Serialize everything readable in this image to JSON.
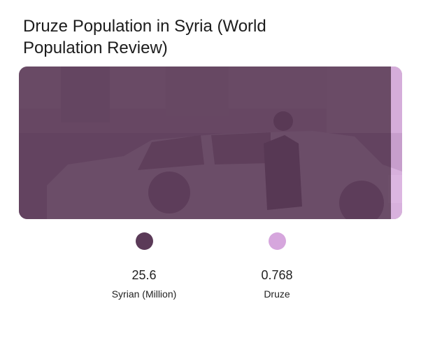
{
  "chart_data": {
    "type": "bar",
    "title": "Druze Population in Syria (World Population Review)",
    "orientation": "horizontal",
    "stacked": true,
    "categories": [
      "Syrian (Million)",
      "Druze"
    ],
    "values": [
      25.6,
      0.768
    ],
    "value_labels": [
      "25.6",
      "0.768"
    ],
    "colors": [
      "#5b3a58",
      "#d6a6dd"
    ],
    "legend": "bottom",
    "grid": false,
    "background": "photo of a police pickup truck with an officer, overlaid by the bars"
  }
}
